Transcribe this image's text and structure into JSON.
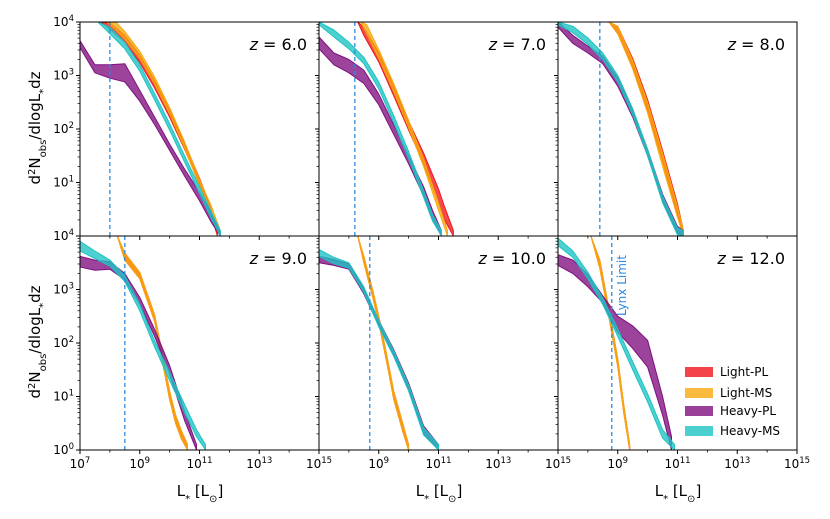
{
  "chart_data": {
    "type": "area",
    "figure": "6-panel grid: observed luminosity function of high-redshift AGN",
    "xlabel": "L_* [L_⊙]",
    "ylabel": "d²N_obs/dlogL_* dz",
    "xscale": "log",
    "yscale": "log",
    "xlim": [
      10000000.0,
      1000000000000000.0
    ],
    "ylim": [
      1,
      10000
    ],
    "x_tick_labels": [
      "10^7",
      "10^9",
      "10^11",
      "10^13",
      "10^15"
    ],
    "x_tick_labels_inner": [
      "10^9",
      "10^11",
      "10^13",
      "10^15"
    ],
    "y_tick_labels": [
      "10^0",
      "10^1",
      "10^2",
      "10^3",
      "10^4"
    ],
    "y_tick_labels_top": [
      "10^1",
      "10^2",
      "10^3",
      "10^4"
    ],
    "legend_location": "lower-right of z = 12.0 panel",
    "annotation": "Lynx Limit",
    "series_colors": {
      "Light-PL": "#f0171c",
      "Light-MS": "#f7a90d",
      "Heavy-PL": "#801080",
      "Heavy-MS": "#1ec3c3"
    },
    "panels": [
      {
        "label": "z = 6.0",
        "z": "6.0",
        "lynx_limit_logL": 8.0,
        "series": [
          {
            "name": "Light-PL",
            "logL": [
              7.7,
              8.0,
              8.5,
              9.0,
              9.5,
              10.0,
              10.5,
              11.0,
              11.3,
              11.6
            ],
            "lo": [
              4.0,
              3.87,
              3.62,
              3.24,
              2.76,
              2.22,
              1.62,
              0.98,
              0.55,
              0.0
            ],
            "hi": [
              4.0,
              3.98,
              3.75,
              3.38,
              2.9,
              2.35,
              1.74,
              1.08,
              0.65,
              0.1
            ]
          },
          {
            "name": "Light-MS",
            "logL": [
              7.9,
              8.2,
              8.5,
              9.0,
              9.5,
              10.0,
              10.5,
              11.0,
              11.4,
              11.7
            ],
            "lo": [
              4.0,
              3.85,
              3.68,
              3.32,
              2.84,
              2.28,
              1.64,
              0.94,
              0.42,
              0.0
            ],
            "hi": [
              4.0,
              4.0,
              3.82,
              3.45,
              2.97,
              2.4,
              1.76,
              1.06,
              0.55,
              0.1
            ]
          },
          {
            "name": "Heavy-PL",
            "logL": [
              7.0,
              7.5,
              8.0,
              8.5,
              9.0,
              9.5,
              10.0,
              10.5,
              11.0,
              11.4,
              11.7
            ],
            "lo": [
              3.52,
              3.05,
              2.95,
              2.88,
              2.52,
              2.08,
              1.6,
              1.12,
              0.66,
              0.25,
              0.0
            ],
            "hi": [
              3.65,
              3.2,
              3.2,
              3.22,
              2.72,
              2.22,
              1.72,
              1.25,
              0.82,
              0.42,
              0.08
            ]
          },
          {
            "name": "Heavy-MS",
            "logL": [
              7.6,
              8.0,
              8.5,
              9.0,
              9.5,
              10.0,
              10.5,
              11.0,
              11.4,
              11.7
            ],
            "lo": [
              4.0,
              3.78,
              3.5,
              3.08,
              2.54,
              1.98,
              1.38,
              0.8,
              0.32,
              0.0
            ],
            "hi": [
              4.0,
              3.9,
              3.62,
              3.2,
              2.66,
              2.1,
              1.5,
              0.92,
              0.44,
              0.1
            ]
          }
        ]
      },
      {
        "label": "z = 7.0",
        "z": "7.0",
        "lynx_limit_logL": 8.2,
        "series": [
          {
            "name": "Light-PL",
            "logL": [
              8.3,
              8.5,
              9.0,
              9.5,
              10.0,
              10.5,
              11.0,
              11.2,
              11.5
            ],
            "lo": [
              4.0,
              3.75,
              3.25,
              2.62,
              1.98,
              1.35,
              0.62,
              0.3,
              0.0
            ],
            "hi": [
              4.0,
              3.9,
              3.42,
              2.8,
              2.15,
              1.55,
              0.88,
              0.55,
              0.1
            ]
          },
          {
            "name": "Light-MS",
            "logL": [
              8.4,
              8.6,
              9.0,
              9.5,
              10.0,
              10.5,
              11.0,
              11.3
            ],
            "lo": [
              4.0,
              3.78,
              3.32,
              2.7,
              2.02,
              1.3,
              0.48,
              0.0
            ],
            "hi": [
              4.0,
              3.95,
              3.48,
              2.85,
              2.16,
              1.44,
              0.62,
              0.1
            ]
          },
          {
            "name": "Heavy-PL",
            "logL": [
              7.0,
              7.5,
              8.0,
              8.5,
              9.0,
              9.5,
              10.0,
              10.5,
              10.8,
              11.1
            ],
            "lo": [
              3.5,
              3.2,
              3.05,
              2.85,
              2.45,
              1.9,
              1.35,
              0.75,
              0.3,
              0.0
            ],
            "hi": [
              3.72,
              3.42,
              3.3,
              3.1,
              2.65,
              2.08,
              1.5,
              0.92,
              0.48,
              0.1
            ]
          },
          {
            "name": "Heavy-MS",
            "logL": [
              7.0,
              7.5,
              8.0,
              8.5,
              9.0,
              9.5,
              10.0,
              10.5,
              10.8,
              11.1
            ],
            "lo": [
              3.95,
              3.72,
              3.5,
              3.22,
              2.75,
              2.12,
              1.45,
              0.72,
              0.28,
              0.0
            ],
            "hi": [
              4.0,
              3.85,
              3.62,
              3.34,
              2.88,
              2.25,
              1.58,
              0.85,
              0.4,
              0.1
            ]
          }
        ]
      },
      {
        "label": "z = 8.0",
        "z": "8.0",
        "lynx_limit_logL": 8.4,
        "series": [
          {
            "name": "Light-PL",
            "logL": [
              8.7,
              9.0,
              9.5,
              10.0,
              10.5,
              11.0,
              11.2
            ],
            "lo": [
              4.0,
              3.78,
              3.15,
              2.35,
              1.4,
              0.4,
              0.0
            ],
            "hi": [
              4.0,
              3.92,
              3.32,
              2.55,
              1.6,
              0.6,
              0.1
            ]
          },
          {
            "name": "Light-MS",
            "logL": [
              8.7,
              9.0,
              9.5,
              10.0,
              10.5,
              11.0,
              11.2
            ],
            "lo": [
              4.0,
              3.78,
              3.12,
              2.3,
              1.3,
              0.35,
              0.0
            ],
            "hi": [
              4.0,
              3.92,
              3.28,
              2.5,
              1.55,
              0.55,
              0.1
            ]
          },
          {
            "name": "Heavy-PL",
            "logL": [
              7.0,
              7.5,
              8.0,
              8.5,
              9.0,
              9.5,
              10.0,
              10.5,
              11.0,
              11.2
            ],
            "lo": [
              3.9,
              3.6,
              3.42,
              3.22,
              2.8,
              2.22,
              1.5,
              0.65,
              0.05,
              0.0
            ],
            "hi": [
              4.0,
              3.75,
              3.55,
              3.36,
              2.95,
              2.36,
              1.62,
              0.78,
              0.18,
              0.1
            ]
          },
          {
            "name": "Heavy-MS",
            "logL": [
              7.0,
              7.5,
              8.0,
              8.5,
              9.0,
              9.5,
              10.0,
              10.5,
              11.0,
              11.2
            ],
            "lo": [
              3.95,
              3.8,
              3.58,
              3.3,
              2.88,
              2.26,
              1.5,
              0.62,
              0.02,
              0.0
            ],
            "hi": [
              4.0,
              3.92,
              3.7,
              3.42,
              3.0,
              2.38,
              1.62,
              0.75,
              0.15,
              0.1
            ]
          }
        ]
      },
      {
        "label": "z = 9.0",
        "z": "9.0",
        "lynx_limit_logL": 8.5,
        "series": [
          {
            "name": "Light-PL",
            "logL": [
              8.25,
              8.5,
              9.0,
              9.5,
              10.0,
              10.2,
              10.4,
              10.6
            ],
            "lo": [
              4.0,
              3.55,
              3.2,
              2.4,
              0.95,
              0.5,
              0.2,
              0.0
            ],
            "hi": [
              4.0,
              3.68,
              3.32,
              2.52,
              1.1,
              0.65,
              0.35,
              0.1
            ]
          },
          {
            "name": "Light-MS",
            "logL": [
              8.25,
              8.5,
              9.0,
              9.5,
              10.0,
              10.2,
              10.4,
              10.6
            ],
            "lo": [
              4.0,
              3.55,
              3.2,
              2.4,
              0.95,
              0.5,
              0.2,
              0.0
            ],
            "hi": [
              4.0,
              3.68,
              3.32,
              2.52,
              1.1,
              0.65,
              0.35,
              0.1
            ]
          },
          {
            "name": "Heavy-PL",
            "logL": [
              7.0,
              7.5,
              8.0,
              8.5,
              9.0,
              9.5,
              10.0,
              10.5,
              10.9
            ],
            "lo": [
              3.42,
              3.36,
              3.38,
              3.18,
              2.72,
              2.12,
              1.42,
              0.55,
              0.0
            ],
            "hi": [
              3.62,
              3.55,
              3.52,
              3.3,
              2.85,
              2.25,
              1.58,
              0.72,
              0.1
            ]
          },
          {
            "name": "Heavy-MS",
            "logL": [
              7.0,
              7.5,
              8.0,
              8.5,
              9.0,
              9.5,
              10.0,
              10.5,
              10.9,
              11.2
            ],
            "lo": [
              3.72,
              3.58,
              3.44,
              3.15,
              2.6,
              1.92,
              1.3,
              0.7,
              0.25,
              0.0
            ],
            "hi": [
              3.9,
              3.72,
              3.55,
              3.26,
              2.72,
              2.04,
              1.45,
              0.85,
              0.38,
              0.1
            ]
          }
        ]
      },
      {
        "label": "z = 10.0",
        "z": "10.0",
        "lynx_limit_logL": 8.7,
        "series": [
          {
            "name": "Light-PL",
            "logL": [
              8.3,
              8.5,
              8.8,
              9.0,
              9.3,
              9.5,
              9.8,
              10.0
            ],
            "lo": [
              4.0,
              3.5,
              2.85,
              2.38,
              1.55,
              0.95,
              0.35,
              0.0
            ],
            "hi": [
              4.0,
              3.62,
              2.98,
              2.5,
              1.68,
              1.1,
              0.5,
              0.1
            ]
          },
          {
            "name": "Light-MS",
            "logL": [
              8.3,
              8.5,
              8.8,
              9.0,
              9.3,
              9.5,
              9.8,
              10.0
            ],
            "lo": [
              4.0,
              3.5,
              2.85,
              2.38,
              1.55,
              0.95,
              0.35,
              0.0
            ],
            "hi": [
              4.0,
              3.62,
              2.98,
              2.5,
              1.68,
              1.1,
              0.5,
              0.1
            ]
          },
          {
            "name": "Heavy-PL",
            "logL": [
              7.0,
              7.5,
              8.0,
              8.5,
              9.0,
              9.5,
              10.0,
              10.5,
              11.0
            ],
            "lo": [
              3.5,
              3.45,
              3.38,
              2.92,
              2.32,
              1.78,
              1.12,
              0.3,
              0.0
            ],
            "hi": [
              3.62,
              3.56,
              3.48,
              3.02,
              2.42,
              1.88,
              1.25,
              0.45,
              0.1
            ]
          },
          {
            "name": "Heavy-MS",
            "logL": [
              7.0,
              7.5,
              8.0,
              8.5,
              9.0,
              9.5,
              10.0,
              10.5,
              11.0
            ],
            "lo": [
              3.62,
              3.48,
              3.4,
              2.95,
              2.3,
              1.75,
              1.1,
              0.28,
              0.0
            ],
            "hi": [
              3.75,
              3.6,
              3.5,
              3.05,
              2.42,
              1.86,
              1.22,
              0.42,
              0.1
            ]
          }
        ]
      },
      {
        "label": "z = 12.0",
        "z": "12.0",
        "lynx_limit_logL": 8.8,
        "annotation": "Lynx Limit",
        "series": [
          {
            "name": "Light-PL",
            "logL": [
              8.1,
              8.4,
              8.7,
              9.0,
              9.2,
              9.4
            ],
            "lo": [
              4.0,
              3.4,
              2.5,
              1.55,
              0.7,
              0.0
            ],
            "hi": [
              4.0,
              3.55,
              2.65,
              1.7,
              0.85,
              0.1
            ]
          },
          {
            "name": "Light-MS",
            "logL": [
              8.1,
              8.4,
              8.7,
              9.0,
              9.2,
              9.4
            ],
            "lo": [
              4.0,
              3.4,
              2.5,
              1.55,
              0.7,
              0.0
            ],
            "hi": [
              4.0,
              3.55,
              2.65,
              1.7,
              0.85,
              0.1
            ]
          },
          {
            "name": "Heavy-PL",
            "logL": [
              7.0,
              7.5,
              8.0,
              8.5,
              9.0,
              9.5,
              10.0,
              10.5,
              10.8
            ],
            "lo": [
              3.45,
              3.3,
              3.05,
              2.75,
              2.2,
              1.9,
              1.55,
              0.65,
              0.0
            ],
            "hi": [
              3.65,
              3.55,
              3.28,
              2.88,
              2.5,
              2.32,
              2.05,
              1.0,
              0.25
            ]
          },
          {
            "name": "Heavy-MS",
            "logL": [
              7.0,
              7.5,
              8.0,
              8.5,
              9.0,
              9.5,
              10.0,
              10.5,
              10.9
            ],
            "lo": [
              3.82,
              3.6,
              3.2,
              2.72,
              2.12,
              1.5,
              0.9,
              0.22,
              0.0
            ],
            "hi": [
              3.96,
              3.72,
              3.32,
              2.84,
              2.26,
              1.65,
              1.05,
              0.38,
              0.1
            ]
          }
        ]
      }
    ]
  }
}
